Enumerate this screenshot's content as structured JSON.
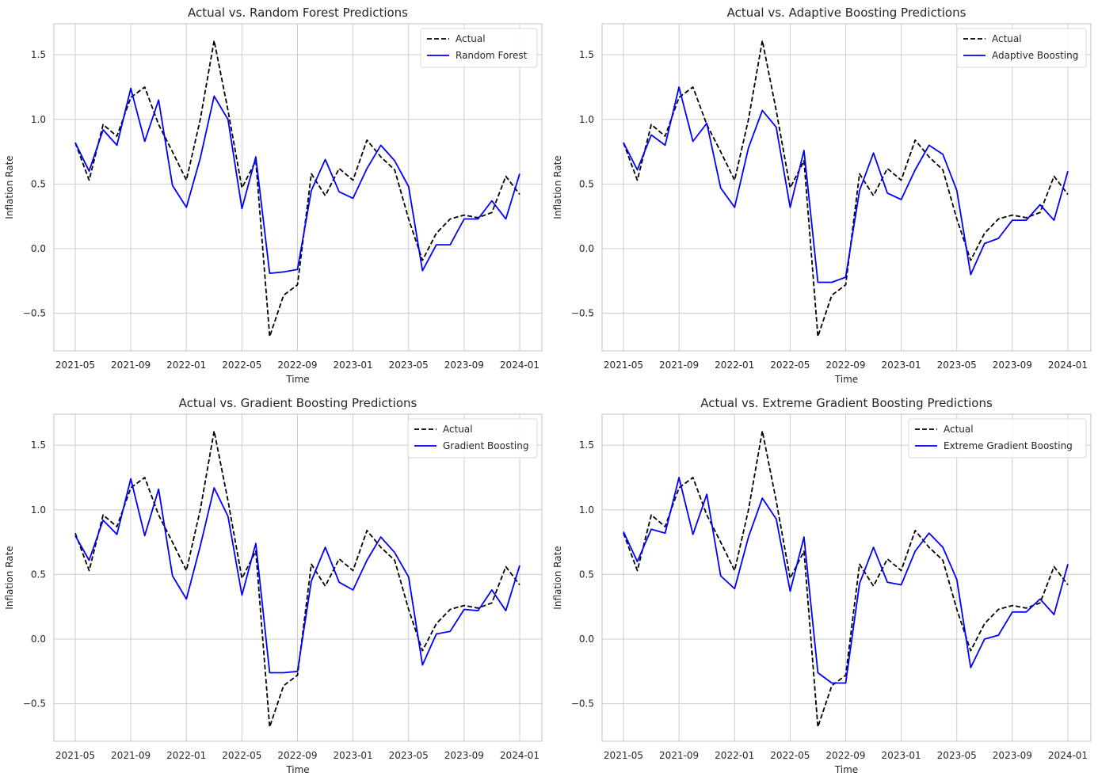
{
  "chart_data": [
    {
      "type": "line",
      "title": "Actual vs. Random Forest Predictions",
      "xlabel": "Time",
      "ylabel": "Inflation Rate",
      "x_tick_labels": [
        "2021-05",
        "2021-09",
        "2022-01",
        "2022-05",
        "2022-09",
        "2023-01",
        "2023-05",
        "2023-09",
        "2024-01"
      ],
      "y_tick_labels": [
        "−0.5",
        "0.0",
        "0.5",
        "1.0",
        "1.5"
      ],
      "y_ticks": [
        -0.5,
        0.0,
        0.5,
        1.0,
        1.5
      ],
      "ylim": [
        -0.79,
        1.74
      ],
      "grid": true,
      "legend_position": "top-right",
      "series": [
        {
          "name": "Actual",
          "style": "dashed",
          "color": "#000000",
          "values": [
            0.82,
            0.53,
            0.96,
            0.87,
            1.17,
            1.25,
            0.96,
            0.75,
            0.53,
            1.0,
            1.61,
            1.07,
            0.47,
            0.68,
            -0.68,
            -0.36,
            -0.28,
            0.58,
            0.41,
            0.62,
            0.53,
            0.84,
            0.71,
            0.61,
            0.23,
            -0.09,
            0.12,
            0.23,
            0.26,
            0.24,
            0.28,
            0.56,
            0.42
          ]
        },
        {
          "name": "Random Forest",
          "style": "solid",
          "color": "#0000ff",
          "values": [
            0.82,
            0.6,
            0.92,
            0.8,
            1.24,
            0.83,
            1.15,
            0.49,
            0.32,
            0.7,
            1.18,
            1.0,
            0.31,
            0.71,
            -0.19,
            -0.18,
            -0.16,
            0.45,
            0.69,
            0.44,
            0.39,
            0.62,
            0.8,
            0.68,
            0.48,
            -0.17,
            0.03,
            0.03,
            0.23,
            0.23,
            0.37,
            0.23,
            0.58
          ]
        }
      ]
    },
    {
      "type": "line",
      "title": "Actual vs. Adaptive Boosting Predictions",
      "xlabel": "Time",
      "ylabel": "Inflation Rate",
      "x_tick_labels": [
        "2021-05",
        "2021-09",
        "2022-01",
        "2022-05",
        "2022-09",
        "2023-01",
        "2023-05",
        "2023-09",
        "2024-01"
      ],
      "y_tick_labels": [
        "−0.5",
        "0.0",
        "0.5",
        "1.0",
        "1.5"
      ],
      "y_ticks": [
        -0.5,
        0.0,
        0.5,
        1.0,
        1.5
      ],
      "ylim": [
        -0.79,
        1.74
      ],
      "grid": true,
      "legend_position": "top-right",
      "series": [
        {
          "name": "Actual",
          "style": "dashed",
          "color": "#000000",
          "values": [
            0.82,
            0.53,
            0.96,
            0.87,
            1.17,
            1.25,
            0.96,
            0.75,
            0.53,
            1.0,
            1.61,
            1.07,
            0.47,
            0.68,
            -0.68,
            -0.36,
            -0.28,
            0.58,
            0.41,
            0.62,
            0.53,
            0.84,
            0.71,
            0.61,
            0.23,
            -0.09,
            0.12,
            0.23,
            0.26,
            0.24,
            0.28,
            0.56,
            0.42
          ]
        },
        {
          "name": "Adaptive Boosting",
          "style": "solid",
          "color": "#0000ff",
          "values": [
            0.82,
            0.61,
            0.88,
            0.8,
            1.25,
            0.83,
            0.97,
            0.47,
            0.32,
            0.78,
            1.07,
            0.94,
            0.32,
            0.76,
            -0.26,
            -0.26,
            -0.22,
            0.45,
            0.74,
            0.43,
            0.38,
            0.61,
            0.8,
            0.73,
            0.45,
            -0.2,
            0.04,
            0.08,
            0.22,
            0.22,
            0.34,
            0.22,
            0.6
          ]
        }
      ]
    },
    {
      "type": "line",
      "title": "Actual vs. Gradient Boosting Predictions",
      "xlabel": "Time",
      "ylabel": "Inflation Rate",
      "x_tick_labels": [
        "2021-05",
        "2021-09",
        "2022-01",
        "2022-05",
        "2022-09",
        "2023-01",
        "2023-05",
        "2023-09",
        "2024-01"
      ],
      "y_tick_labels": [
        "−0.5",
        "0.0",
        "0.5",
        "1.0",
        "1.5"
      ],
      "y_ticks": [
        -0.5,
        0.0,
        0.5,
        1.0,
        1.5
      ],
      "ylim": [
        -0.79,
        1.74
      ],
      "grid": true,
      "legend_position": "top-right",
      "series": [
        {
          "name": "Actual",
          "style": "dashed",
          "color": "#000000",
          "values": [
            0.82,
            0.53,
            0.96,
            0.87,
            1.17,
            1.25,
            0.96,
            0.75,
            0.53,
            1.0,
            1.61,
            1.07,
            0.47,
            0.68,
            -0.68,
            -0.36,
            -0.28,
            0.58,
            0.41,
            0.62,
            0.53,
            0.84,
            0.71,
            0.61,
            0.23,
            -0.09,
            0.12,
            0.23,
            0.26,
            0.24,
            0.28,
            0.56,
            0.42
          ]
        },
        {
          "name": "Gradient Boosting",
          "style": "solid",
          "color": "#0000ff",
          "values": [
            0.8,
            0.61,
            0.92,
            0.81,
            1.24,
            0.8,
            1.16,
            0.49,
            0.31,
            0.72,
            1.17,
            0.95,
            0.34,
            0.74,
            -0.26,
            -0.26,
            -0.25,
            0.45,
            0.71,
            0.44,
            0.38,
            0.61,
            0.79,
            0.67,
            0.48,
            -0.2,
            0.04,
            0.06,
            0.23,
            0.22,
            0.38,
            0.22,
            0.57
          ]
        }
      ]
    },
    {
      "type": "line",
      "title": "Actual vs. Extreme Gradient Boosting Predictions",
      "xlabel": "Time",
      "ylabel": "Inflation Rate",
      "x_tick_labels": [
        "2021-05",
        "2021-09",
        "2022-01",
        "2022-05",
        "2022-09",
        "2023-01",
        "2023-05",
        "2023-09",
        "2024-01"
      ],
      "y_tick_labels": [
        "−0.5",
        "0.0",
        "0.5",
        "1.0",
        "1.5"
      ],
      "y_ticks": [
        -0.5,
        0.0,
        0.5,
        1.0,
        1.5
      ],
      "ylim": [
        -0.79,
        1.74
      ],
      "grid": true,
      "legend_position": "top-right",
      "series": [
        {
          "name": "Actual",
          "style": "dashed",
          "color": "#000000",
          "values": [
            0.82,
            0.53,
            0.96,
            0.87,
            1.17,
            1.25,
            0.96,
            0.75,
            0.53,
            1.0,
            1.61,
            1.07,
            0.47,
            0.68,
            -0.68,
            -0.36,
            -0.28,
            0.58,
            0.41,
            0.62,
            0.53,
            0.84,
            0.71,
            0.61,
            0.23,
            -0.09,
            0.12,
            0.23,
            0.26,
            0.24,
            0.28,
            0.56,
            0.42
          ]
        },
        {
          "name": "Extreme Gradient Boosting",
          "style": "solid",
          "color": "#0000ff",
          "values": [
            0.83,
            0.6,
            0.85,
            0.82,
            1.25,
            0.81,
            1.12,
            0.49,
            0.39,
            0.79,
            1.09,
            0.93,
            0.37,
            0.79,
            -0.26,
            -0.34,
            -0.34,
            0.43,
            0.71,
            0.44,
            0.42,
            0.68,
            0.82,
            0.71,
            0.46,
            -0.22,
            0.0,
            0.03,
            0.21,
            0.21,
            0.31,
            0.19,
            0.58
          ]
        }
      ]
    }
  ]
}
